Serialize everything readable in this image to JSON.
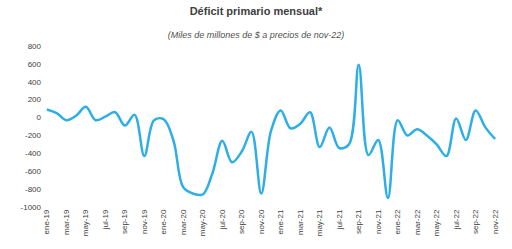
{
  "chart_data": {
    "type": "line",
    "title": "Déficit primario mensual*",
    "subtitle": "(Miles de millones de $ a precios de nov-22)",
    "categories": [
      "ene-19",
      null,
      "mar-19",
      null,
      "may-19",
      null,
      "jul-19",
      null,
      "sep-19",
      null,
      "nov-19",
      null,
      "ene-20",
      null,
      "mar-20",
      null,
      "may-20",
      null,
      "jul-20",
      null,
      "sep-20",
      null,
      "nov-20",
      null,
      "ene-21",
      null,
      "mar-21",
      null,
      "may-21",
      null,
      "jul-21",
      null,
      "sep-21",
      null,
      "nov-21",
      null,
      "ene-22",
      null,
      "mar-22",
      null,
      "may-22",
      null,
      "jul-22",
      null,
      "sep-22",
      null,
      "nov-22"
    ],
    "values": [
      90,
      50,
      -30,
      20,
      120,
      -30,
      10,
      60,
      -90,
      30,
      -430,
      -30,
      -20,
      -260,
      -780,
      -850,
      -860,
      -620,
      -260,
      -500,
      -380,
      -160,
      -850,
      -150,
      80,
      -120,
      -70,
      60,
      -330,
      -110,
      -340,
      -300,
      590,
      -420,
      -250,
      -900,
      -30,
      -200,
      -130,
      -200,
      -300,
      -430,
      -10,
      -250,
      80,
      -110,
      -240
    ],
    "color": "#2eaee6",
    "line_style": "spline",
    "ylim": [
      -1000,
      800
    ],
    "yticks": [
      -1000,
      -800,
      -600,
      -400,
      -200,
      0,
      200,
      400,
      600,
      800
    ],
    "grid": false
  }
}
